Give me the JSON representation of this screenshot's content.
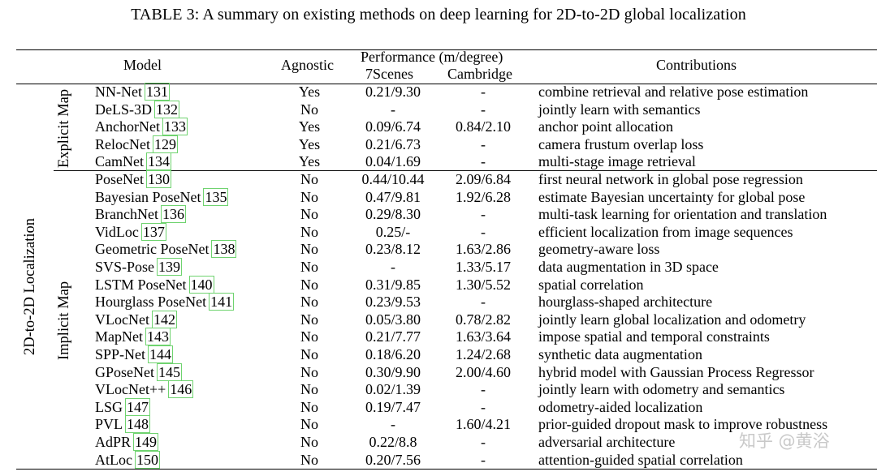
{
  "caption": "TABLE 3: A summary on existing methods on deep learning for 2D-to-2D global localization",
  "headers": {
    "model": "Model",
    "agnostic": "Agnostic",
    "performance": "Performance (m/degree)",
    "sevenscenes": "7Scenes",
    "cambridge": "Cambridge",
    "contributions": "Contributions"
  },
  "groups": {
    "outer": "2D-to-2D Localization",
    "explicit": "Explicit Map",
    "implicit": "Implicit Map"
  },
  "rows": [
    {
      "model": "NN-Net",
      "ref": "131",
      "agnostic": "Yes",
      "sevenscenes": "0.21/9.30",
      "cambridge": "-",
      "contribution": "combine retrieval and relative pose estimation"
    },
    {
      "model": "DeLS-3D",
      "ref": "132",
      "agnostic": "No",
      "sevenscenes": "-",
      "cambridge": "-",
      "contribution": "jointly learn with semantics"
    },
    {
      "model": "AnchorNet",
      "ref": "133",
      "agnostic": "Yes",
      "sevenscenes": "0.09/6.74",
      "cambridge": "0.84/2.10",
      "contribution": "anchor point allocation"
    },
    {
      "model": "RelocNet",
      "ref": "129",
      "agnostic": "Yes",
      "sevenscenes": "0.21/6.73",
      "cambridge": "-",
      "contribution": "camera frustum overlap loss"
    },
    {
      "model": "CamNet",
      "ref": "134",
      "agnostic": "Yes",
      "sevenscenes": "0.04/1.69",
      "cambridge": "-",
      "contribution": "multi-stage image retrieval"
    },
    {
      "model": "PoseNet",
      "ref": "130",
      "agnostic": "No",
      "sevenscenes": "0.44/10.44",
      "cambridge": "2.09/6.84",
      "contribution": "first neural network in global pose regression"
    },
    {
      "model": "Bayesian PoseNet",
      "ref": "135",
      "agnostic": "No",
      "sevenscenes": "0.47/9.81",
      "cambridge": "1.92/6.28",
      "contribution": "estimate Bayesian uncertainty for global pose"
    },
    {
      "model": "BranchNet",
      "ref": "136",
      "agnostic": "No",
      "sevenscenes": "0.29/8.30",
      "cambridge": "-",
      "contribution": "multi-task learning for orientation and translation"
    },
    {
      "model": "VidLoc",
      "ref": "137",
      "agnostic": "No",
      "sevenscenes": "0.25/-",
      "cambridge": "-",
      "contribution": "efficient localization from image sequences"
    },
    {
      "model": "Geometric PoseNet",
      "ref": "138",
      "agnostic": "No",
      "sevenscenes": "0.23/8.12",
      "cambridge": "1.63/2.86",
      "contribution": "geometry-aware loss"
    },
    {
      "model": "SVS-Pose",
      "ref": "139",
      "agnostic": "No",
      "sevenscenes": "-",
      "cambridge": "1.33/5.17",
      "contribution": "data augmentation in 3D space"
    },
    {
      "model": "LSTM PoseNet",
      "ref": "140",
      "agnostic": "No",
      "sevenscenes": "0.31/9.85",
      "cambridge": "1.30/5.52",
      "contribution": "spatial correlation"
    },
    {
      "model": "Hourglass PoseNet",
      "ref": "141",
      "agnostic": "No",
      "sevenscenes": "0.23/9.53",
      "cambridge": "-",
      "contribution": "hourglass-shaped architecture"
    },
    {
      "model": "VLocNet",
      "ref": "142",
      "agnostic": "No",
      "sevenscenes": "0.05/3.80",
      "cambridge": "0.78/2.82",
      "contribution": "jointly learn global localization and odometry"
    },
    {
      "model": "MapNet",
      "ref": "143",
      "agnostic": "No",
      "sevenscenes": "0.21/7.77",
      "cambridge": "1.63/3.64",
      "contribution": "impose spatial and temporal constraints"
    },
    {
      "model": "SPP-Net",
      "ref": "144",
      "agnostic": "No",
      "sevenscenes": "0.18/6.20",
      "cambridge": "1.24/2.68",
      "contribution": "synthetic data augmentation"
    },
    {
      "model": "GPoseNet",
      "ref": "145",
      "agnostic": "No",
      "sevenscenes": "0.30/9.90",
      "cambridge": "2.00/4.60",
      "contribution": "hybrid model with Gaussian Process Regressor"
    },
    {
      "model": "VLocNet++",
      "ref": "146",
      "agnostic": "No",
      "sevenscenes": "0.02/1.39",
      "cambridge": "-",
      "contribution": "jointly learn with odometry and semantics"
    },
    {
      "model": "LSG",
      "ref": "147",
      "agnostic": "No",
      "sevenscenes": "0.19/7.47",
      "cambridge": "-",
      "contribution": "odometry-aided localization"
    },
    {
      "model": "PVL",
      "ref": "148",
      "agnostic": "No",
      "sevenscenes": "-",
      "cambridge": "1.60/4.21",
      "contribution": "prior-guided dropout mask to improve robustness"
    },
    {
      "model": "AdPR",
      "ref": "149",
      "agnostic": "No",
      "sevenscenes": "0.22/8.8",
      "cambridge": "-",
      "contribution": "adversarial architecture"
    },
    {
      "model": "AtLoc",
      "ref": "150",
      "agnostic": "No",
      "sevenscenes": "0.20/7.56",
      "cambridge": "-",
      "contribution": "attention-guided spatial correlation"
    }
  ],
  "watermark": "知乎 @黄浴"
}
